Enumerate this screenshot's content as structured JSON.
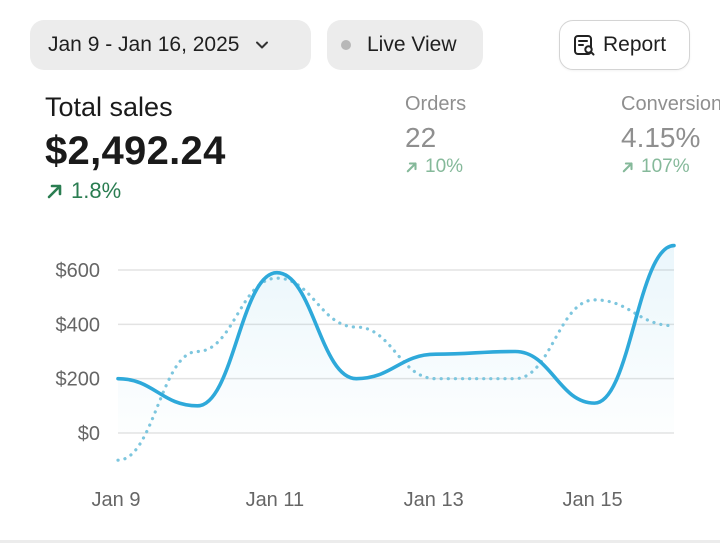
{
  "toolbar": {
    "date_range": "Jan 9 - Jan 16, 2025",
    "live_view": "Live View",
    "report": "Report"
  },
  "metrics": {
    "total_sales": {
      "label": "Total sales",
      "value": "$2,492.24",
      "change": "1.8%"
    },
    "orders": {
      "label": "Orders",
      "value": "22",
      "change": "10%"
    },
    "conversion": {
      "label": "Conversion",
      "value": "4.15%",
      "change": "107%"
    }
  },
  "colors": {
    "current_line": "#2ea9da",
    "comparison_line": "#7dc6de",
    "positive": "#2a7d51",
    "positive_muted": "#85b99a"
  },
  "chart_data": {
    "type": "line",
    "x": [
      "Jan 9",
      "Jan 10",
      "Jan 11",
      "Jan 12",
      "Jan 13",
      "Jan 14",
      "Jan 15",
      "Jan 16"
    ],
    "x_ticks": [
      "Jan 9",
      "Jan 11",
      "Jan 13",
      "Jan 15"
    ],
    "y_ticks": [
      "$0",
      "$200",
      "$400",
      "$600"
    ],
    "y_tick_values": [
      0,
      200,
      400,
      600
    ],
    "ylim": [
      0,
      600
    ],
    "grid": true,
    "series": [
      {
        "style": "solid",
        "values": [
          200,
          100,
          590,
          200,
          290,
          300,
          110,
          690
        ]
      },
      {
        "style": "dotted",
        "values": [
          -100,
          300,
          570,
          390,
          200,
          200,
          490,
          395
        ]
      }
    ]
  }
}
